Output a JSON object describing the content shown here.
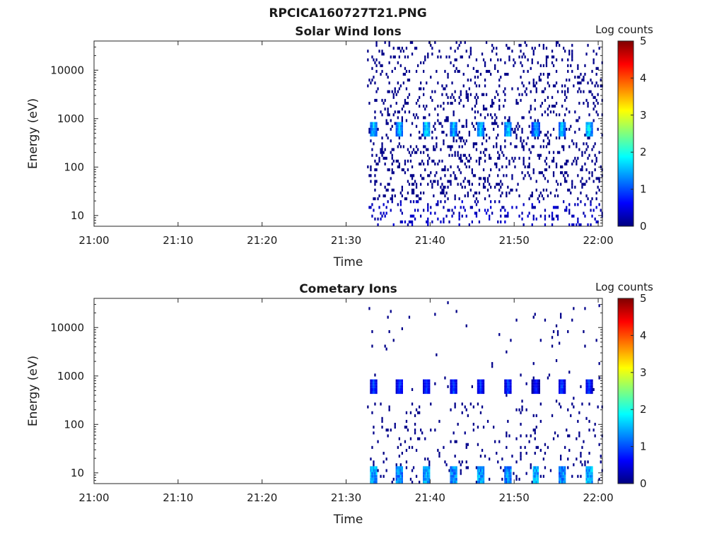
{
  "figure": {
    "title": "RPCICA160727T21.PNG",
    "colorbar_label": "Log counts",
    "colormap": [
      "#00007f",
      "#0000ff",
      "#007fff",
      "#00ffff",
      "#7fff7f",
      "#ffff00",
      "#ff7f00",
      "#ff0000",
      "#7f0000"
    ]
  },
  "chart_data": [
    {
      "type": "heatmap",
      "title": "Solar Wind Ions",
      "xlabel": "Time",
      "ylabel": "Energy (eV)",
      "x_tick_labels": [
        "21:00",
        "21:10",
        "21:20",
        "21:30",
        "21:40",
        "21:50",
        "22:00"
      ],
      "x_tick_minutes": [
        0,
        10,
        20,
        30,
        40,
        50,
        60
      ],
      "xlim_minutes": [
        0,
        60.5
      ],
      "y_scale": "log",
      "ylim": [
        6,
        40000
      ],
      "y_tick_labels": [
        "10",
        "100",
        "1000",
        "10000"
      ],
      "y_tick_values": [
        10,
        100,
        1000,
        10000
      ],
      "colorbar": {
        "label": "Log counts",
        "range": [
          0,
          5
        ],
        "tick_labels": [
          "0",
          "1",
          "2",
          "3",
          "4",
          "5"
        ]
      },
      "data_start_minute": 32.5,
      "data_end_minute": 60.5,
      "background_counts_log": 0.05,
      "peak_energy_eV": 650,
      "peak_times_minutes": [
        33.2,
        36.3,
        39.5,
        42.7,
        45.9,
        49.2,
        52.5,
        55.6,
        58.8
      ],
      "peak_log_counts": [
        2.0,
        2.0,
        2.2,
        2.0,
        2.0,
        2.1,
        1.9,
        2.0,
        2.2
      ],
      "low_energy_log_counts": 0.3
    },
    {
      "type": "heatmap",
      "title": "Cometary Ions",
      "xlabel": "Time",
      "ylabel": "Energy (eV)",
      "x_tick_labels": [
        "21:00",
        "21:10",
        "21:20",
        "21:30",
        "21:40",
        "21:50",
        "22:00"
      ],
      "x_tick_minutes": [
        0,
        10,
        20,
        30,
        40,
        50,
        60
      ],
      "xlim_minutes": [
        0,
        60.5
      ],
      "y_scale": "log",
      "ylim": [
        6,
        40000
      ],
      "y_tick_labels": [
        "10",
        "100",
        "1000",
        "10000"
      ],
      "y_tick_values": [
        10,
        100,
        1000,
        10000
      ],
      "colorbar": {
        "label": "Log counts",
        "range": [
          0,
          5
        ],
        "tick_labels": [
          "0",
          "1",
          "2",
          "3",
          "4",
          "5"
        ]
      },
      "data_start_minute": 32.5,
      "data_end_minute": 60.5,
      "background_counts_log": 0.02,
      "peak_energy_eV": 650,
      "peak_times_minutes": [
        33.2,
        36.3,
        39.5,
        42.7,
        45.9,
        49.2,
        52.5,
        55.6,
        58.8
      ],
      "peak_log_counts": [
        1.2,
        1.2,
        1.2,
        1.2,
        1.2,
        1.2,
        1.0,
        1.2,
        1.2
      ],
      "low_energy_burst_log_counts": [
        1.8,
        1.6,
        1.8,
        1.6,
        1.8,
        1.6,
        1.8,
        1.6,
        1.8
      ]
    }
  ]
}
